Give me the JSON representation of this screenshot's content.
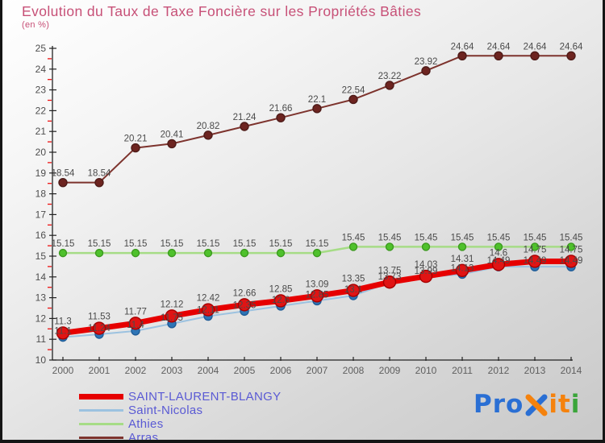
{
  "title": "Evolution du Taux de Taxe Foncière sur les Propriétés Bâties",
  "subtitle": "(en %)",
  "colors": {
    "title": "#c75077",
    "axis": "#222222",
    "minor_tick": "#ee1111",
    "tick_label": "#4d4d4d",
    "x_tick_label": "#5f5f5f",
    "data_label": "#4a4a4a",
    "legend_text": "#5a5ad4"
  },
  "chart_data": {
    "type": "line",
    "title": "Evolution du Taux de Taxe Foncière sur les Propriétés Bâties",
    "subtitle": "(en %)",
    "x": [
      "2000",
      "2001",
      "2002",
      "2003",
      "2004",
      "2005",
      "2006",
      "2007",
      "2008",
      "2009",
      "2010",
      "2011",
      "2012",
      "2013",
      "2014"
    ],
    "xlabel": "",
    "ylabel": "en %",
    "ylim": [
      10,
      25
    ],
    "y_tick_step": 1,
    "y_minor_tick_step": 0.5,
    "grid": false,
    "legend_position": "bottom-left",
    "series": [
      {
        "name": "SAINT-LAURENT-BLANGY",
        "values": [
          11.3,
          11.53,
          11.77,
          12.12,
          12.42,
          12.66,
          12.85,
          13.09,
          13.35,
          13.75,
          14.03,
          14.31,
          14.6,
          14.75,
          14.75
        ],
        "line_color": "#e60000",
        "line_width": 7,
        "marker_color": "#e01414",
        "marker_stroke": "#a50000",
        "marker_radius": 7.5,
        "label_dy": -11,
        "legend_sample_height": 7
      },
      {
        "name": "Saint-Nicolas",
        "values": [
          11.1,
          11.24,
          11.4,
          11.75,
          12.11,
          12.35,
          12.6,
          12.85,
          13.1,
          13.73,
          13.99,
          14.13,
          14.49,
          14.49,
          14.49
        ],
        "line_color": "#9cc2e0",
        "line_width": 2,
        "marker_color": "#2e75b6",
        "marker_stroke": "#1f5c97",
        "marker_radius": 5,
        "label_dy": -4,
        "legend_sample_height": 3
      },
      {
        "name": "Athies",
        "values": [
          15.15,
          15.15,
          15.15,
          15.15,
          15.15,
          15.15,
          15.15,
          15.15,
          15.45,
          15.45,
          15.45,
          15.45,
          15.45,
          15.45,
          15.45
        ],
        "line_color": "#a6dc86",
        "line_width": 2.5,
        "marker_color": "#4fc12c",
        "marker_stroke": "#3c9a1f",
        "marker_radius": 4.5,
        "label_dy": -8,
        "legend_sample_height": 3
      },
      {
        "name": "Arras",
        "values": [
          18.54,
          18.54,
          20.21,
          20.41,
          20.82,
          21.24,
          21.66,
          22.1,
          22.54,
          23.22,
          23.92,
          24.64,
          24.64,
          24.64,
          24.64
        ],
        "line_color": "#7d332d",
        "line_width": 2,
        "marker_color": "#6d2420",
        "marker_stroke": "#4e1b18",
        "marker_radius": 5,
        "label_dy": -8,
        "legend_sample_height": 3
      }
    ]
  },
  "logo": {
    "segments_before_x": [
      {
        "text": "Pro",
        "color": "#2a6fd4"
      }
    ],
    "x_icon": {
      "stroke_backslash": "#f5820d",
      "stroke_slash": "#2a6fd4"
    },
    "segments_after_x": [
      {
        "text": "it",
        "color": "#f5820d"
      },
      {
        "text": "i",
        "color": "#3aa53a"
      }
    ]
  }
}
